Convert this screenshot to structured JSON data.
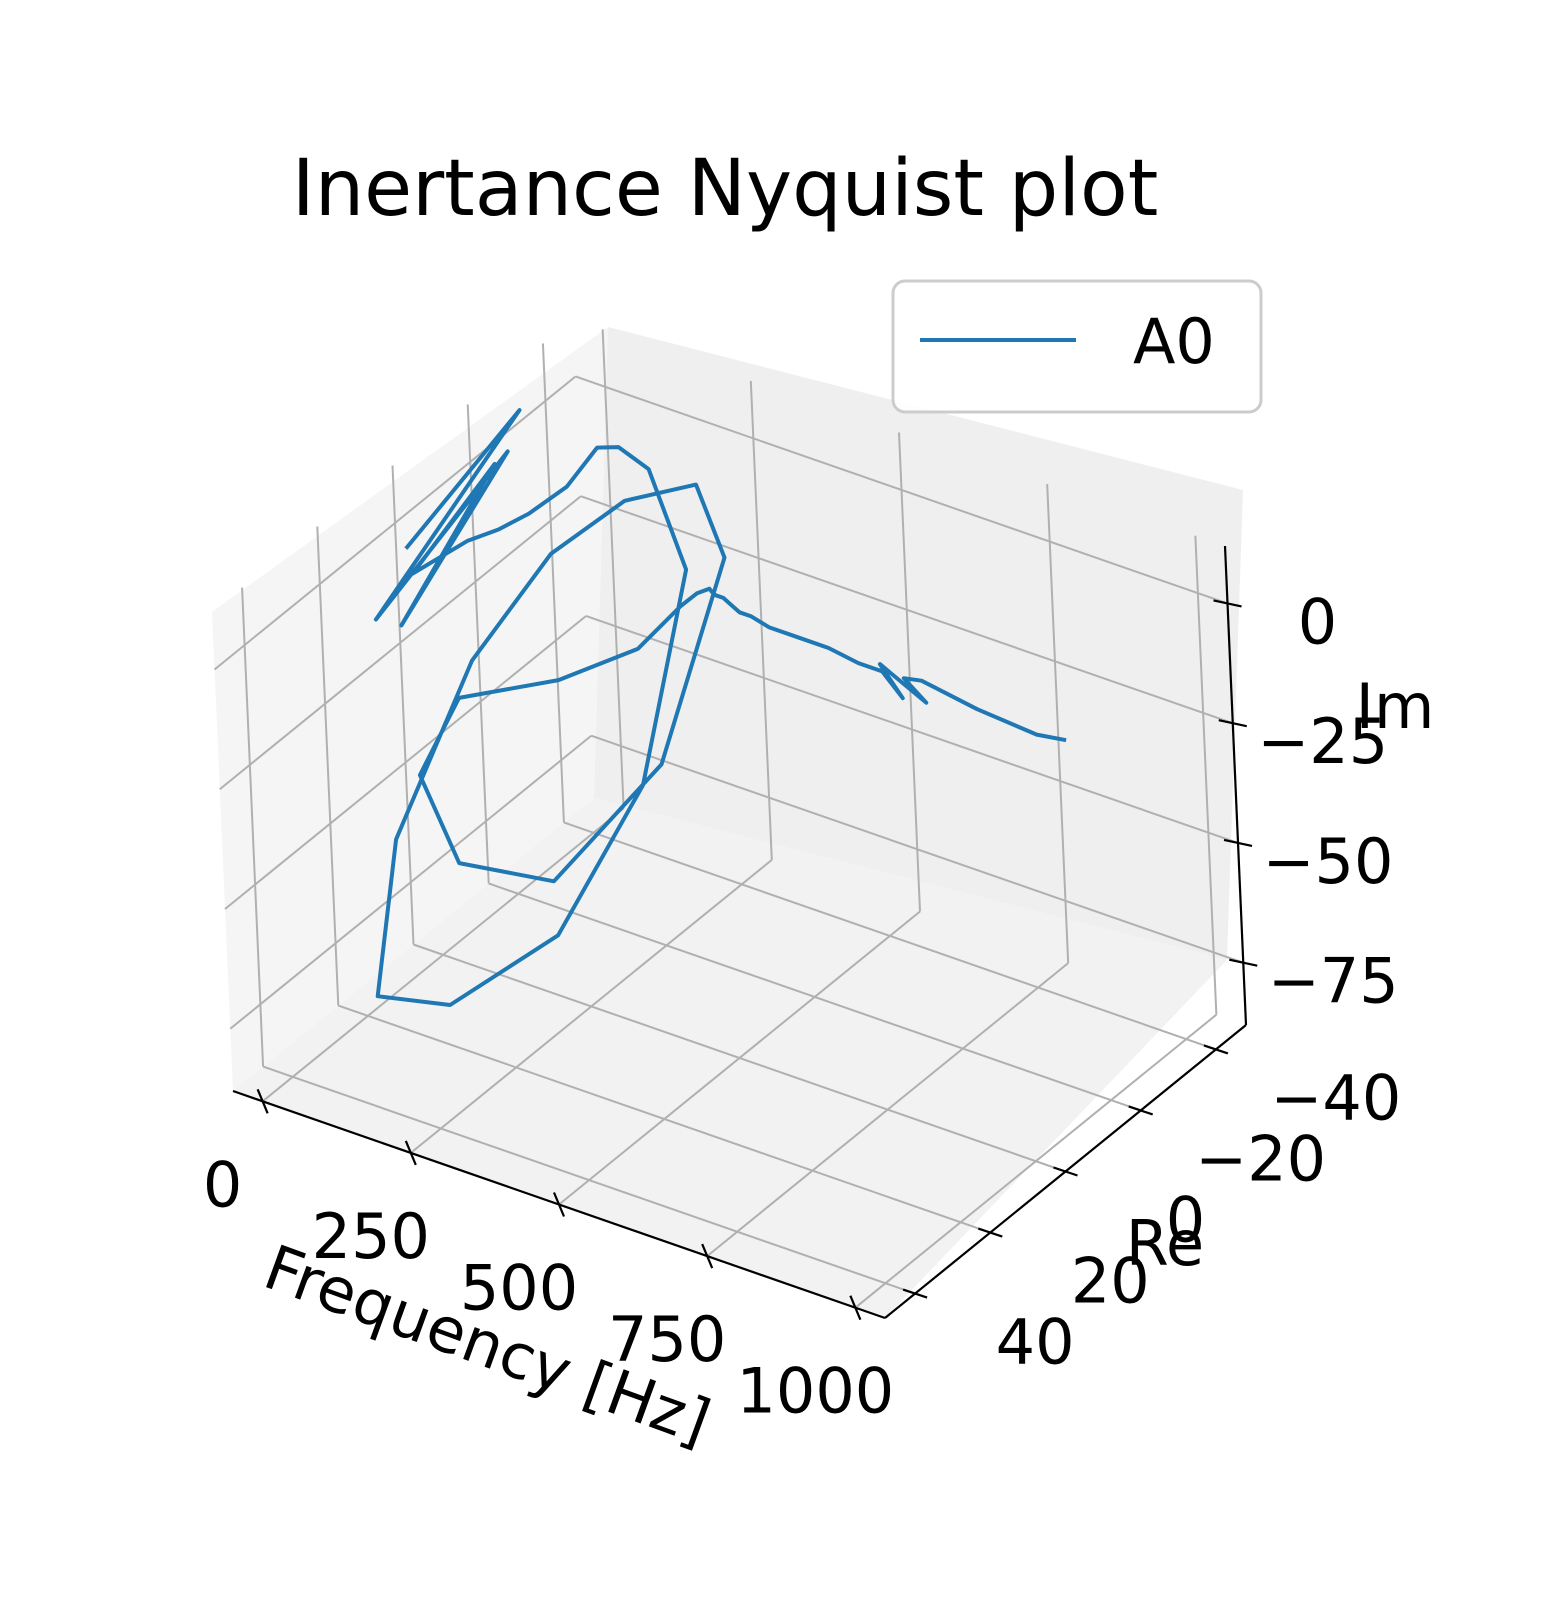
{
  "chart_data": {
    "type": "line",
    "projection": "3d",
    "title": "Inertance Nyquist plot",
    "xlabel": "Frequency [Hz]",
    "ylabel": "Re",
    "zlabel": "Im",
    "x_ticks": [
      "0",
      "250",
      "500",
      "750",
      "1000"
    ],
    "y_ticks": [
      "40",
      "20",
      "0",
      "−20",
      "−40"
    ],
    "z_ticks": [
      "0",
      "−25",
      "−50",
      "−75"
    ],
    "xlim": [
      -50,
      1050
    ],
    "ylim": [
      -48,
      48
    ],
    "zlim": [
      -88,
      12
    ],
    "grid": true,
    "legend_position": "top-right",
    "series": [
      {
        "name": "A0",
        "color": "#1f77b4",
        "x": [
          0,
          5,
          10,
          15,
          20,
          25,
          30,
          40,
          60,
          80,
          100,
          115,
          125,
          135,
          145,
          155,
          165,
          175,
          185,
          195,
          205,
          215,
          225,
          235,
          245,
          255,
          262,
          268,
          274,
          280,
          285,
          290,
          300,
          315,
          330,
          345,
          360,
          380,
          400,
          420,
          450,
          500,
          550,
          600,
          640,
          660,
          670,
          680,
          690,
          700,
          800,
          900,
          950
        ],
        "y": [
          5,
          -25,
          15,
          -20,
          10,
          -15,
          8,
          -5,
          -10,
          -15,
          -22,
          -28,
          -32,
          -38,
          -45,
          -30,
          -5,
          25,
          45,
          40,
          20,
          0,
          -18,
          -35,
          -40,
          -20,
          10,
          35,
          45,
          35,
          10,
          -10,
          -20,
          -22,
          -23,
          -22,
          -22,
          -21,
          -20,
          -20,
          -20,
          -20,
          -20,
          -20,
          -20,
          -22,
          -15,
          -25,
          -18,
          -21,
          -20,
          -20,
          -20
        ],
        "z": [
          0,
          10,
          -8,
          5,
          -12,
          6,
          -2,
          -3,
          -3,
          -2,
          0,
          5,
          3,
          -5,
          -30,
          -65,
          -80,
          -75,
          -60,
          -30,
          -5,
          5,
          5,
          -2,
          -20,
          -50,
          -55,
          -35,
          -10,
          0,
          -12,
          -18,
          -15,
          -13,
          -12,
          -12,
          -12,
          -12,
          -12,
          -12,
          -13,
          -13,
          -13,
          -14,
          -14,
          -20,
          -8,
          -22,
          -12,
          -14,
          -15,
          -16,
          -15
        ]
      }
    ]
  }
}
